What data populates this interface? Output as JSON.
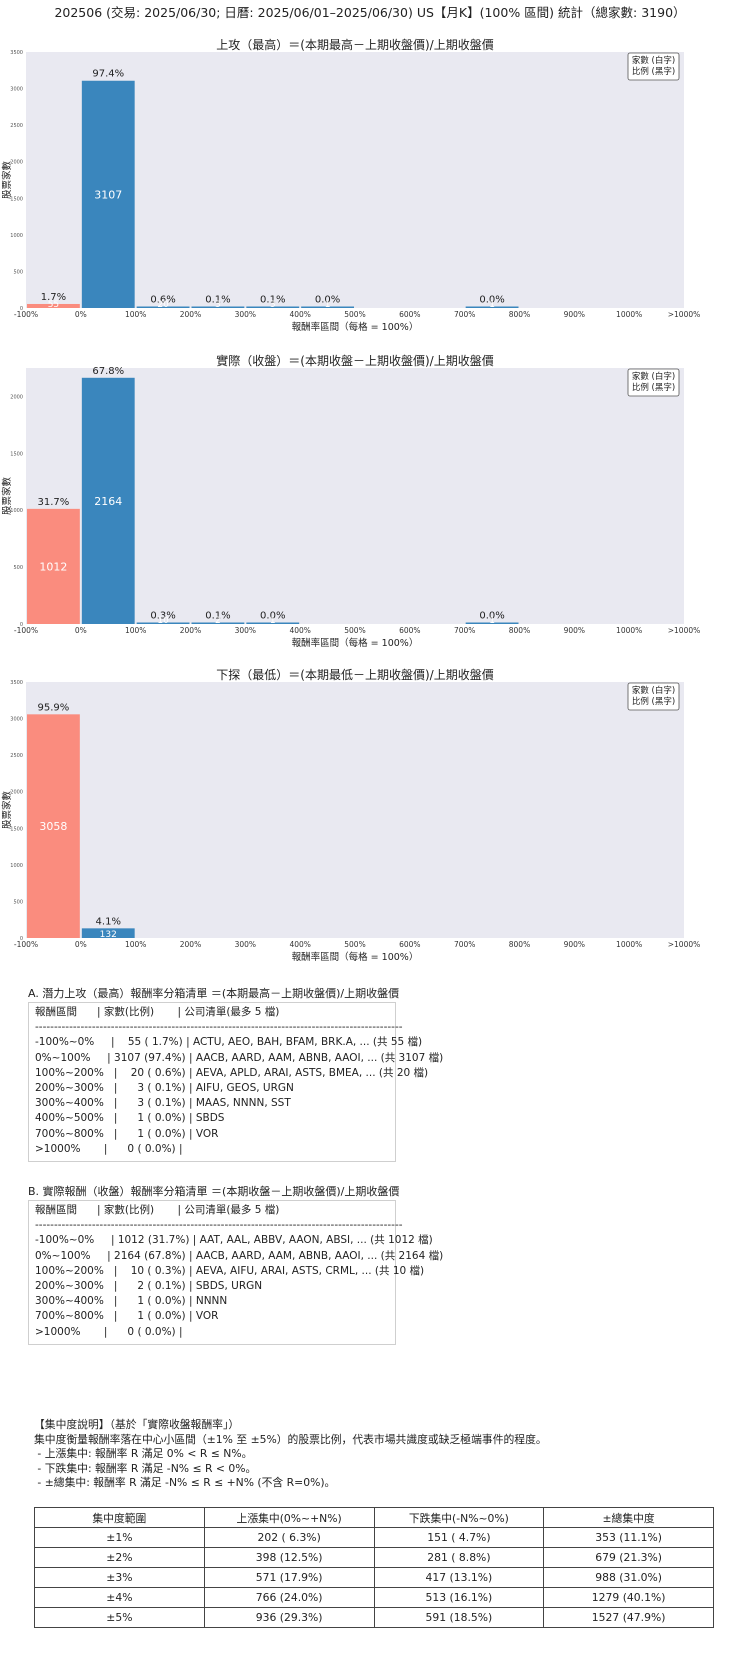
{
  "page_title": "202506 (交易: 2025/06/30; 日曆: 2025/06/01–2025/06/30) US【月K】(100% 區間) 統計（總家數: 3190）",
  "categories": [
    "-100%~0%",
    "0%~100%",
    "100%~200%",
    "200%~300%",
    "300%~400%",
    "400%~500%",
    "500%~600%",
    "600%~700%",
    "700%~800%",
    "800%~900%",
    "900%~1000%",
    ">1000%"
  ],
  "chart_data": [
    {
      "type": "bar",
      "title": "上攻（最高）＝(本期最高－上期收盤價)/上期收盤價",
      "xlabel": "報酬率區間（每格 = 100%）",
      "ylabel": "股票家數",
      "ylim": [
        0,
        3500
      ],
      "yticks": [
        0,
        500,
        1000,
        1500,
        2000,
        2500,
        3000,
        3500
      ],
      "xtick_labels": [
        "-100%",
        "0%",
        "100%",
        "200%",
        "300%",
        "400%",
        "500%",
        "600%",
        "700%",
        "800%",
        "900%",
        "1000%",
        ">1000%"
      ],
      "legend": [
        "家數 (白字)",
        "比例 (黑字)"
      ],
      "legend_position": "top-right",
      "grid": false,
      "values": [
        55,
        3107,
        20,
        3,
        3,
        1,
        0,
        0,
        1,
        0,
        0,
        0
      ],
      "pct_labels": [
        "1.7%",
        "97.4%",
        "0.6%",
        "0.1%",
        "0.1%",
        "0.0%",
        "",
        "",
        "0.0%",
        "",
        "",
        ""
      ],
      "count_labels": [
        "55",
        "3107",
        "20",
        "3",
        "3",
        "1",
        "",
        "",
        "1",
        "",
        "",
        ""
      ],
      "colors": [
        "#fa8c7e",
        "#3a86bd",
        "#3a86bd",
        "#3a86bd",
        "#3a86bd",
        "#3a86bd",
        "#3a86bd",
        "#3a86bd",
        "#3a86bd",
        "#3a86bd",
        "#3a86bd",
        "#3a86bd"
      ]
    },
    {
      "type": "bar",
      "title": "實際（收盤）＝(本期收盤－上期收盤價)/上期收盤價",
      "xlabel": "報酬率區間（每格 = 100%）",
      "ylabel": "股票家數",
      "ylim": [
        0,
        2250
      ],
      "yticks": [
        0,
        500,
        1000,
        1500,
        2000
      ],
      "xtick_labels": [
        "-100%",
        "0%",
        "100%",
        "200%",
        "300%",
        "400%",
        "500%",
        "600%",
        "700%",
        "800%",
        "900%",
        "1000%",
        ">1000%"
      ],
      "legend": [
        "家數 (白字)",
        "比例 (黑字)"
      ],
      "legend_position": "top-right",
      "grid": false,
      "values": [
        1012,
        2164,
        10,
        2,
        1,
        0,
        0,
        0,
        1,
        0,
        0,
        0
      ],
      "pct_labels": [
        "31.7%",
        "67.8%",
        "0.3%",
        "0.1%",
        "0.0%",
        "",
        "",
        "",
        "0.0%",
        "",
        "",
        ""
      ],
      "count_labels": [
        "1012",
        "2164",
        "10",
        "2",
        "1",
        "",
        "",
        "",
        "1",
        "",
        "",
        ""
      ],
      "colors": [
        "#fa8c7e",
        "#3a86bd",
        "#3a86bd",
        "#3a86bd",
        "#3a86bd",
        "#3a86bd",
        "#3a86bd",
        "#3a86bd",
        "#3a86bd",
        "#3a86bd",
        "#3a86bd",
        "#3a86bd"
      ]
    },
    {
      "type": "bar",
      "title": "下探（最低）＝(本期最低－上期收盤價)/上期收盤價",
      "xlabel": "報酬率區間（每格 = 100%）",
      "ylabel": "股票家數",
      "ylim": [
        0,
        3500
      ],
      "yticks": [
        0,
        500,
        1000,
        1500,
        2000,
        2500,
        3000,
        3500
      ],
      "xtick_labels": [
        "-100%",
        "0%",
        "100%",
        "200%",
        "300%",
        "400%",
        "500%",
        "600%",
        "700%",
        "800%",
        "900%",
        "1000%",
        ">1000%"
      ],
      "legend": [
        "家數 (白字)",
        "比例 (黑字)"
      ],
      "legend_position": "top-right",
      "grid": false,
      "values": [
        3058,
        132,
        0,
        0,
        0,
        0,
        0,
        0,
        0,
        0,
        0,
        0
      ],
      "pct_labels": [
        "95.9%",
        "4.1%",
        "",
        "",
        "",
        "",
        "",
        "",
        "",
        "",
        "",
        ""
      ],
      "count_labels": [
        "3058",
        "132",
        "",
        "",
        "",
        "",
        "",
        "",
        "",
        "",
        "",
        ""
      ],
      "colors": [
        "#fa8c7e",
        "#3a86bd",
        "#3a86bd",
        "#3a86bd",
        "#3a86bd",
        "#3a86bd",
        "#3a86bd",
        "#3a86bd",
        "#3a86bd",
        "#3a86bd",
        "#3a86bd",
        "#3a86bd"
      ]
    }
  ],
  "list_a": {
    "heading": "A. 潛力上攻（最高）報酬率分箱清單 ＝(本期最高－上期收盤價)/上期收盤價",
    "lines": [
      "報酬區間      | 家數(比例)       | 公司清單(最多 5 檔)",
      "-------------------------------------------------------------------------------------------------",
      "-100%~0%     |    55 ( 1.7%) | ACTU, AEO, BAH, BFAM, BRK.A, ... (共 55 檔)",
      "0%~100%     | 3107 (97.4%) | AACB, AARD, AAM, ABNB, AAOI, ... (共 3107 檔)",
      "100%~200%   |    20 ( 0.6%) | AEVA, APLD, ARAI, ASTS, BMEA, ... (共 20 檔)",
      "200%~300%   |      3 ( 0.1%) | AIFU, GEOS, URGN",
      "300%~400%   |      3 ( 0.1%) | MAAS, NNNN, SST",
      "400%~500%   |      1 ( 0.0%) | SBDS",
      "700%~800%   |      1 ( 0.0%) | VOR",
      ">1000%       |      0 ( 0.0%) |"
    ]
  },
  "list_b": {
    "heading": "B. 實際報酬（收盤）報酬率分箱清單 ＝(本期收盤－上期收盤價)/上期收盤價",
    "lines": [
      "報酬區間      | 家數(比例)       | 公司清單(最多 5 檔)",
      "-------------------------------------------------------------------------------------------------",
      "-100%~0%     | 1012 (31.7%) | AAT, AAL, ABBV, AAON, ABSI, ... (共 1012 檔)",
      "0%~100%     | 2164 (67.8%) | AACB, AARD, AAM, ABNB, AAOI, ... (共 2164 檔)",
      "100%~200%   |    10 ( 0.3%) | AEVA, AIFU, ARAI, ASTS, CRML, ... (共 10 檔)",
      "200%~300%   |      2 ( 0.1%) | SBDS, URGN",
      "300%~400%   |      1 ( 0.0%) | NNNN",
      "700%~800%   |      1 ( 0.0%) | VOR",
      ">1000%       |      0 ( 0.0%) |"
    ]
  },
  "notes": {
    "lines": [
      "【集中度說明】（基於「實際收盤報酬率」）",
      "集中度衡量報酬率落在中心小區間（±1% 至 ±5%）的股票比例，代表市場共識度或缺乏極端事件的程度。",
      " - 上漲集中: 報酬率 R 滿足 0% < R ≤ N%。",
      " - 下跌集中: 報酬率 R 滿足 -N% ≤ R < 0%。",
      " - ±總集中: 報酬率 R 滿足 -N% ≤ R ≤ +N% (不含 R=0%)。"
    ]
  },
  "concentration_table": {
    "headers": [
      "集中度範圍",
      "上漲集中(0%~+N%)",
      "下跌集中(-N%~0%)",
      "±總集中度"
    ],
    "rows": [
      [
        "±1%",
        "202 ( 6.3%)",
        "151 ( 4.7%)",
        "353 (11.1%)"
      ],
      [
        "±2%",
        "398 (12.5%)",
        "281 ( 8.8%)",
        "679 (21.3%)"
      ],
      [
        "±3%",
        "571 (17.9%)",
        "417 (13.1%)",
        "988 (31.0%)"
      ],
      [
        "±4%",
        "766 (24.0%)",
        "513 (16.1%)",
        "1279 (40.1%)"
      ],
      [
        "±5%",
        "936 (29.3%)",
        "591 (18.5%)",
        "1527 (47.9%)"
      ]
    ]
  }
}
